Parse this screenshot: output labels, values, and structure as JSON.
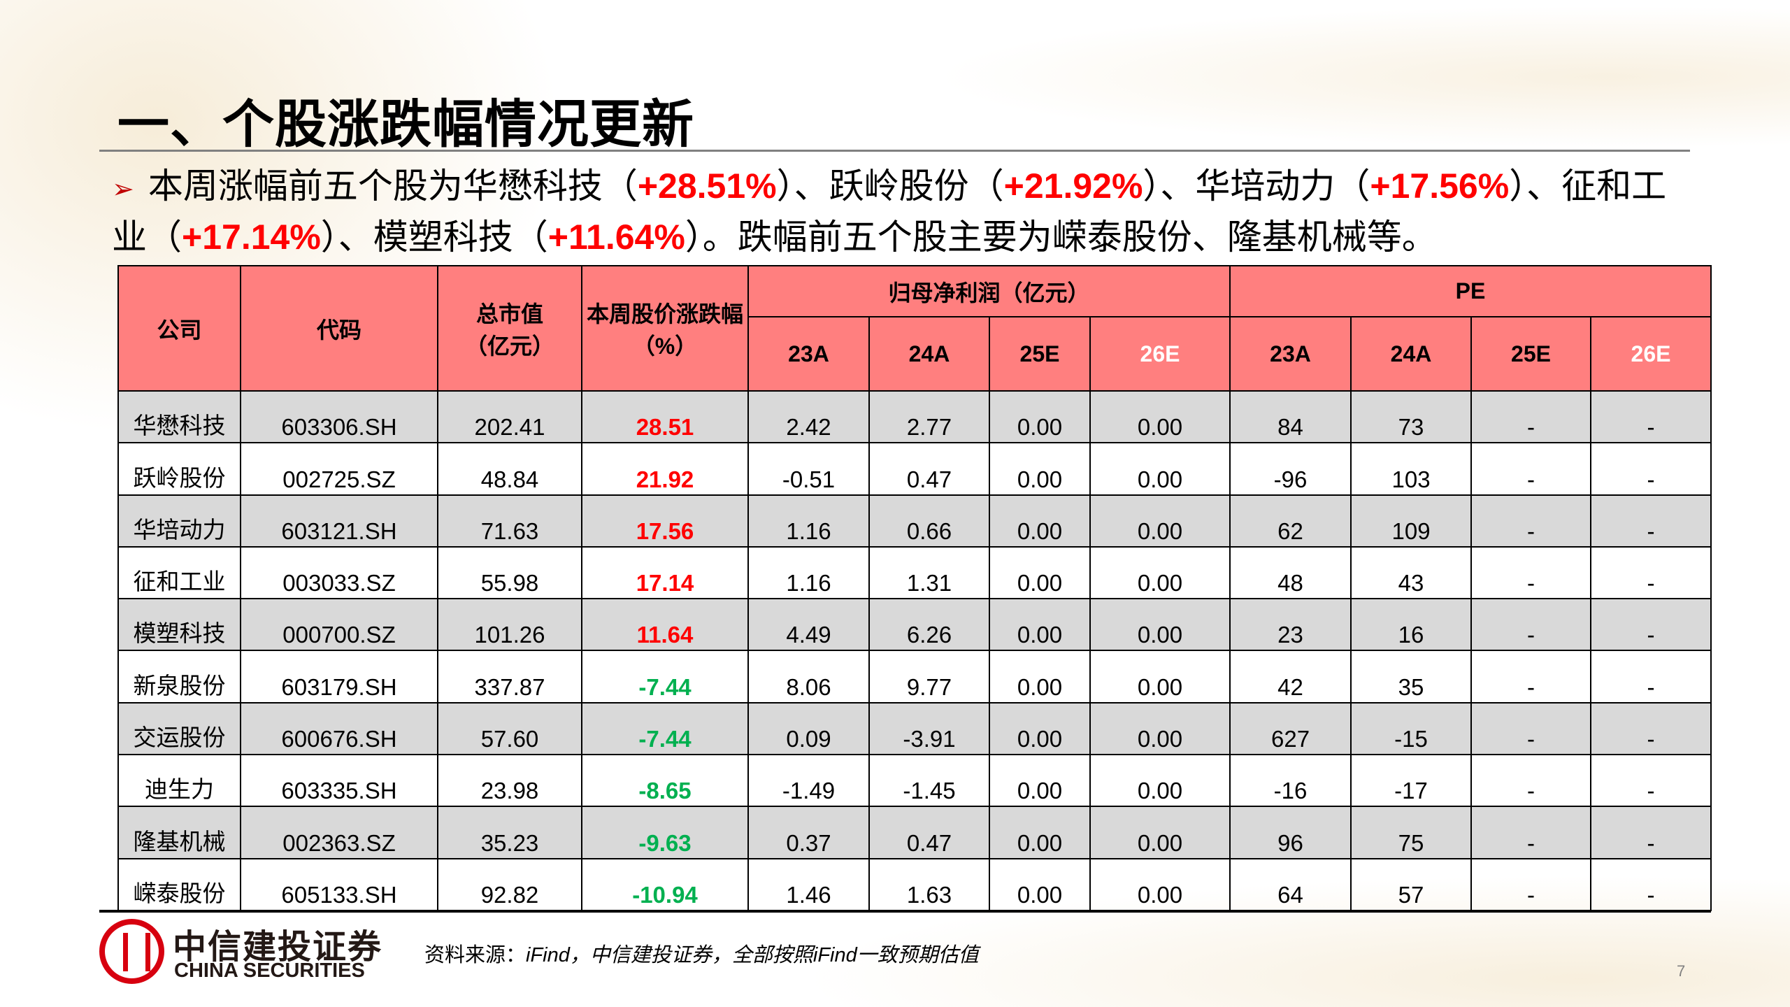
{
  "title": "一、个股涨跌幅情况更新",
  "bullet": {
    "icon": "arrow-bullet-icon",
    "p1": "本周涨幅前五个股为华懋科技（",
    "v1": "+28.51%",
    "p2": "）、跃岭股份（",
    "v2": "+21.92%",
    "p3": "）、华培动力（",
    "v3": "+17.56%",
    "p4": "）、征和工业（",
    "v4": "+17.14%",
    "p5": "）、模塑科技（",
    "v5": "+11.64%",
    "p6": "）。跌幅前五个股主要为嵘泰股份、隆基机械等。"
  },
  "table": {
    "headers": {
      "company": "公司",
      "code": "代码",
      "mcap": "总市值\n（亿元）",
      "mcap1": "总市值",
      "mcap2": "（亿元）",
      "chg1": "本周股价涨跌幅",
      "chg2": "（%）",
      "profit": "归母净利润（亿元）",
      "pe": "PE",
      "years": [
        "23A",
        "24A",
        "25E",
        "26E"
      ]
    },
    "rows": [
      [
        "华懋科技",
        "603306.SH",
        "202.41",
        "28.51",
        "2.42",
        "2.77",
        "0.00",
        "0.00",
        "84",
        "73",
        "-",
        "-"
      ],
      [
        "跃岭股份",
        "002725.SZ",
        "48.84",
        "21.92",
        "-0.51",
        "0.47",
        "0.00",
        "0.00",
        "-96",
        "103",
        "-",
        "-"
      ],
      [
        "华培动力",
        "603121.SH",
        "71.63",
        "17.56",
        "1.16",
        "0.66",
        "0.00",
        "0.00",
        "62",
        "109",
        "-",
        "-"
      ],
      [
        "征和工业",
        "003033.SZ",
        "55.98",
        "17.14",
        "1.16",
        "1.31",
        "0.00",
        "0.00",
        "48",
        "43",
        "-",
        "-"
      ],
      [
        "模塑科技",
        "000700.SZ",
        "101.26",
        "11.64",
        "4.49",
        "6.26",
        "0.00",
        "0.00",
        "23",
        "16",
        "-",
        "-"
      ],
      [
        "新泉股份",
        "603179.SH",
        "337.87",
        "-7.44",
        "8.06",
        "9.77",
        "0.00",
        "0.00",
        "42",
        "35",
        "-",
        "-"
      ],
      [
        "交运股份",
        "600676.SH",
        "57.60",
        "-7.44",
        "0.09",
        "-3.91",
        "0.00",
        "0.00",
        "627",
        "-15",
        "-",
        "-"
      ],
      [
        "迪生力",
        "603335.SH",
        "23.98",
        "-8.65",
        "-1.49",
        "-1.45",
        "0.00",
        "0.00",
        "-16",
        "-17",
        "-",
        "-"
      ],
      [
        "隆基机械",
        "002363.SZ",
        "35.23",
        "-9.63",
        "0.37",
        "0.47",
        "0.00",
        "0.00",
        "96",
        "75",
        "-",
        "-"
      ],
      [
        "嵘泰股份",
        "605133.SH",
        "92.82",
        "-10.94",
        "1.46",
        "1.63",
        "0.00",
        "0.00",
        "64",
        "57",
        "-",
        "-"
      ]
    ]
  },
  "footer": {
    "logo_cn": "中信建投证券",
    "logo_en": "CHINA SECURITIES",
    "source_label": "资料来源：",
    "source_text": "iFind，中信建投证券，全部按照iFind一致预期估值",
    "page": "7"
  },
  "colors": {
    "header": "#ff7f7f",
    "up": "#ff0000",
    "down": "#00b050",
    "stripe": "#d9d9d9"
  }
}
